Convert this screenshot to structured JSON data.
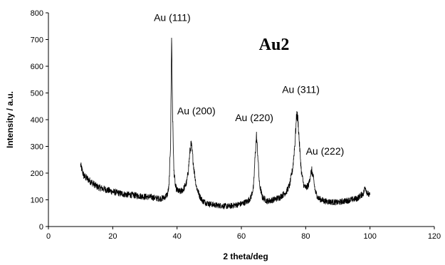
{
  "chart_data": {
    "type": "line",
    "title": "Au2",
    "xlabel": "2 theta/deg",
    "ylabel": "Intensity / a.u.",
    "xlim": [
      0,
      120
    ],
    "ylim": [
      0,
      800
    ],
    "xticks": [
      0,
      20,
      40,
      60,
      80,
      100,
      120
    ],
    "yticks": [
      0,
      100,
      200,
      300,
      400,
      500,
      600,
      700,
      800
    ],
    "grid": false,
    "legend": "none",
    "series": [
      {
        "color": "#000000",
        "x": [
          10,
          10.5,
          11,
          12,
          13,
          14,
          15,
          16,
          18,
          20,
          22,
          24,
          26,
          28,
          30,
          32,
          34,
          35,
          36,
          37,
          37.5,
          38,
          38.3,
          38.6,
          39,
          39.5,
          40,
          41,
          42,
          43,
          43.5,
          44,
          44.4,
          44.8,
          45.3,
          46,
          47,
          48,
          50,
          52,
          54,
          56,
          58,
          60,
          62,
          63,
          63.8,
          64.3,
          64.7,
          65.1,
          65.6,
          66.5,
          68,
          70,
          72,
          74,
          75,
          76,
          76.7,
          77.2,
          77.6,
          78.1,
          78.7,
          79.5,
          80.3,
          81,
          81.5,
          81.9,
          82.4,
          83,
          84,
          86,
          88,
          90,
          92,
          94,
          96,
          97,
          98,
          98.5,
          99,
          99.5,
          100
        ],
        "y": [
          230,
          210,
          190,
          180,
          170,
          160,
          150,
          145,
          138,
          130,
          125,
          120,
          118,
          115,
          112,
          110,
          105,
          105,
          108,
          120,
          150,
          320,
          720,
          430,
          210,
          150,
          135,
          130,
          140,
          165,
          210,
          280,
          310,
          270,
          210,
          150,
          115,
          95,
          85,
          80,
          78,
          75,
          80,
          85,
          95,
          110,
          150,
          270,
          340,
          270,
          160,
          110,
          95,
          100,
          110,
          130,
          155,
          220,
          320,
          420,
          400,
          300,
          200,
          150,
          145,
          160,
          195,
          210,
          180,
          130,
          105,
          95,
          92,
          90,
          95,
          100,
          105,
          115,
          125,
          150,
          130,
          120,
          115
        ]
      }
    ],
    "annotations": [
      {
        "text": "Au (111)",
        "x": 38.5,
        "y": 770
      },
      {
        "text": "Au (200)",
        "x": 46,
        "y": 420
      },
      {
        "text": "Au (220)",
        "x": 64,
        "y": 395
      },
      {
        "text": "Au (311)",
        "x": 78.5,
        "y": 500
      },
      {
        "text": "Au (222)",
        "x": 86,
        "y": 270
      }
    ]
  }
}
